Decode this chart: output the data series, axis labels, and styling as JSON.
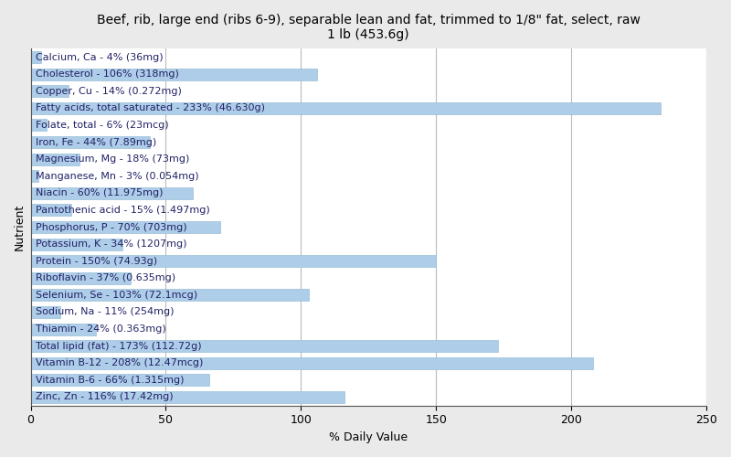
{
  "title": "Beef, rib, large end (ribs 6-9), separable lean and fat, trimmed to 1/8\" fat, select, raw\n1 lb (453.6g)",
  "xlabel": "% Daily Value",
  "ylabel": "Nutrient",
  "xlim": [
    0,
    250
  ],
  "xticks": [
    0,
    50,
    100,
    150,
    200,
    250
  ],
  "bar_color": "#aecde8",
  "bar_edge_color": "#9abfd8",
  "background_color": "#eaeaea",
  "plot_background": "#ffffff",
  "nutrients": [
    "Calcium, Ca - 4% (36mg)",
    "Cholesterol - 106% (318mg)",
    "Copper, Cu - 14% (0.272mg)",
    "Fatty acids, total saturated - 233% (46.630g)",
    "Folate, total - 6% (23mcg)",
    "Iron, Fe - 44% (7.89mg)",
    "Magnesium, Mg - 18% (73mg)",
    "Manganese, Mn - 3% (0.054mg)",
    "Niacin - 60% (11.975mg)",
    "Pantothenic acid - 15% (1.497mg)",
    "Phosphorus, P - 70% (703mg)",
    "Potassium, K - 34% (1207mg)",
    "Protein - 150% (74.93g)",
    "Riboflavin - 37% (0.635mg)",
    "Selenium, Se - 103% (72.1mcg)",
    "Sodium, Na - 11% (254mg)",
    "Thiamin - 24% (0.363mg)",
    "Total lipid (fat) - 173% (112.72g)",
    "Vitamin B-12 - 208% (12.47mcg)",
    "Vitamin B-6 - 66% (1.315mg)",
    "Zinc, Zn - 116% (17.42mg)"
  ],
  "values": [
    4,
    106,
    14,
    233,
    6,
    44,
    18,
    3,
    60,
    15,
    70,
    34,
    150,
    37,
    103,
    11,
    24,
    173,
    208,
    66,
    116
  ],
  "title_fontsize": 10,
  "axis_label_fontsize": 9,
  "tick_fontsize": 9,
  "bar_label_fontsize": 8,
  "bar_height": 0.7
}
